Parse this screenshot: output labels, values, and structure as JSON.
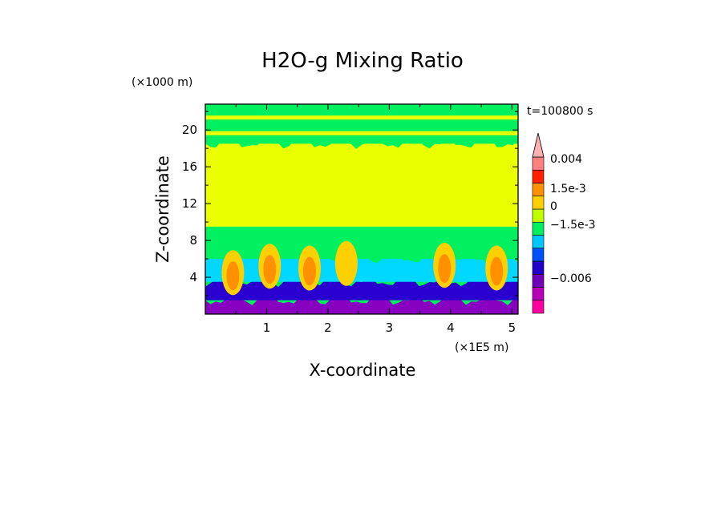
{
  "chart_data": {
    "type": "heatmap",
    "title": "H2O-g Mixing Ratio",
    "xlabel": "X-coordinate",
    "ylabel": "Z-coordinate",
    "x_unit": "(×1E5 m)",
    "y_unit": "(×1000 m)",
    "time_label": "t=100800 s",
    "xlim": [
      0,
      5.1
    ],
    "ylim": [
      0,
      22.8
    ],
    "x_ticks": [
      1,
      2,
      3,
      4,
      5
    ],
    "y_ticks": [
      4,
      8,
      12,
      16,
      20
    ],
    "x_tick_labels": [
      "1",
      "2",
      "3",
      "4",
      "5"
    ],
    "y_tick_labels": [
      "4",
      "8",
      "12",
      "16",
      "20"
    ],
    "colorbar": {
      "colors": [
        "#ff00a0",
        "#b800b8",
        "#7000b8",
        "#2000c8",
        "#0050ff",
        "#00c8ff",
        "#00f060",
        "#c0ff00",
        "#ffd000",
        "#ff9000",
        "#ff2000",
        "#ff8080",
        "#ffb0b0"
      ],
      "labels": [
        "0.004",
        "1.5e-3",
        "0",
        "−1.5e-3",
        "−0.006"
      ],
      "label_levels": [
        0.004,
        0.0015,
        0,
        -0.0015,
        -0.006
      ]
    },
    "bands": [
      {
        "z": [
          0,
          1.5
        ],
        "color": "#8800c0"
      },
      {
        "z": [
          1.5,
          3.5
        ],
        "color": "#2a00d0"
      },
      {
        "z": [
          3.5,
          6
        ],
        "color": "#00d8ff"
      },
      {
        "z": [
          6,
          9.5
        ],
        "color": "#00f060"
      },
      {
        "z": [
          9.5,
          18.5
        ],
        "color": "#eaff00"
      },
      {
        "z": [
          18.5,
          22.8
        ],
        "color": "#00f060"
      }
    ],
    "plumes": [
      {
        "x": 0.45,
        "z": 4.5,
        "color": "#ff9000"
      },
      {
        "x": 1.05,
        "z": 5.2,
        "color": "#ff9000"
      },
      {
        "x": 1.7,
        "z": 5.0,
        "color": "#ff9000"
      },
      {
        "x": 3.9,
        "z": 5.3,
        "color": "#ff9000"
      },
      {
        "x": 4.75,
        "z": 5.0,
        "color": "#ff9000"
      },
      {
        "x": 2.3,
        "z": 5.5,
        "color": "#ffd000"
      }
    ]
  }
}
